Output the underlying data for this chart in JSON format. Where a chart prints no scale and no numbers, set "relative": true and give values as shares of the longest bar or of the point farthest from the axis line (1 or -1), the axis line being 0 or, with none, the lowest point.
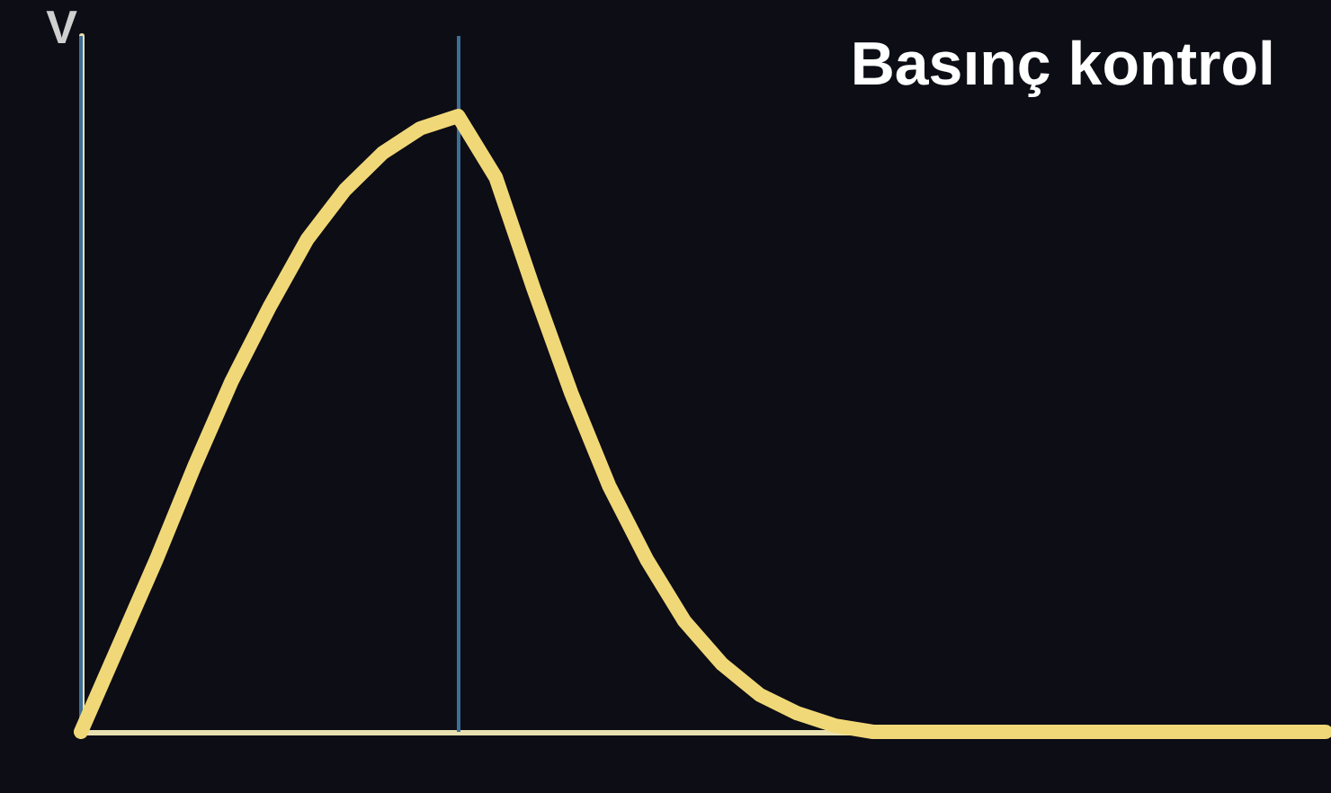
{
  "chart_data": {
    "type": "line",
    "title": "Basınç kontrol",
    "ylabel": "V",
    "relative": true,
    "categories": [
      null,
      null,
      null,
      null,
      null,
      null,
      null,
      null,
      null,
      null,
      null,
      null,
      null,
      null,
      null,
      null,
      null,
      null,
      null,
      null,
      null,
      null,
      null,
      null,
      null,
      null,
      null,
      null,
      null,
      null,
      null,
      null,
      null,
      null
    ],
    "series": [
      {
        "color": "#f0d878",
        "values": [
          0,
          0.14,
          0.28,
          0.43,
          0.57,
          0.69,
          0.8,
          0.88,
          0.94,
          0.98,
          1,
          0.9,
          0.72,
          0.55,
          0.4,
          0.28,
          0.18,
          0.11,
          0.06,
          0.03,
          0.01,
          0,
          0,
          0,
          0,
          0,
          0,
          0,
          0,
          0,
          0,
          0,
          0,
          0
        ]
      }
    ],
    "grid": false,
    "line_style": "solid"
  }
}
